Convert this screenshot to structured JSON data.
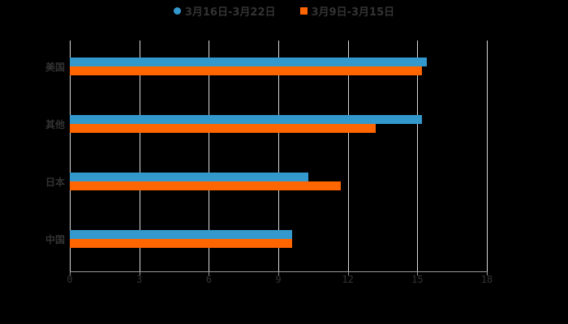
{
  "legend": [
    {
      "label": "3月16日-3月22日",
      "color": "#3399cc"
    },
    {
      "label": "3月9日-3月15日",
      "color": "#ff6600"
    }
  ],
  "chart_data": {
    "type": "bar",
    "orientation": "horizontal",
    "categories": [
      "美国",
      "其他",
      "日本",
      "中国"
    ],
    "series": [
      {
        "name": "3月16日-3月22日",
        "color": "#3399cc",
        "values": [
          15.4,
          15.2,
          10.3,
          9.6
        ]
      },
      {
        "name": "3月9日-3月15日",
        "color": "#ff6600",
        "values": [
          15.2,
          13.2,
          11.7,
          9.6
        ]
      }
    ],
    "xticks": [
      "0",
      "3",
      "6",
      "9",
      "12",
      "15",
      "18"
    ],
    "xlim": [
      0,
      18
    ],
    "grid": true,
    "legend_position": "top",
    "title": "",
    "xlabel": "",
    "ylabel": ""
  }
}
